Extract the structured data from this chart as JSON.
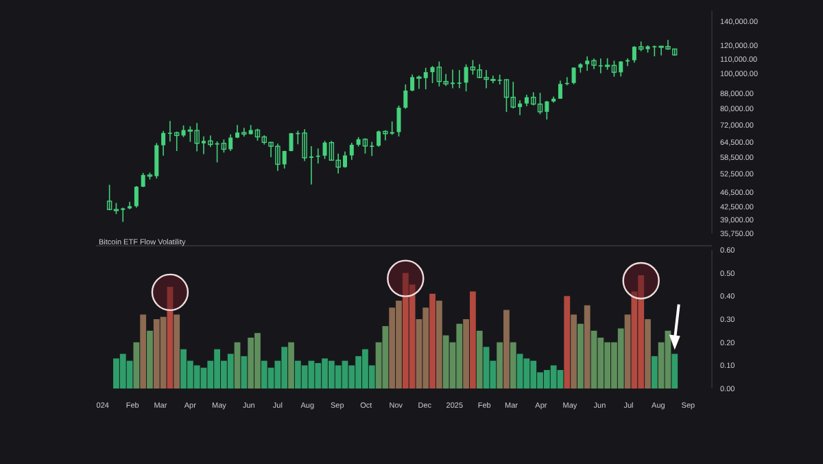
{
  "chart_data": [
    {
      "type": "candlestick",
      "color": "#45d27c",
      "log": "y",
      "tick_labels": "y",
      "xlim": [
        "2023-12-25",
        "2025-09-20"
      ],
      "ylim": [
        35750,
        150000
      ],
      "yticks": [
        {
          "value": 140000,
          "label": "140,000.00"
        },
        {
          "value": 120000,
          "label": "120,000.00"
        },
        {
          "value": 110000,
          "label": "110,000.00"
        },
        {
          "value": 100000,
          "label": "100,000.00"
        },
        {
          "value": 88000,
          "label": "88,000.00"
        },
        {
          "value": 80000,
          "label": "80,000.00"
        },
        {
          "value": 72000,
          "label": "72,000.00"
        },
        {
          "value": 64500,
          "label": "64,500.00"
        },
        {
          "value": 58500,
          "label": "58,500.00"
        },
        {
          "value": 52500,
          "label": "52,500.00"
        },
        {
          "value": 46500,
          "label": "46,500.00"
        },
        {
          "value": 42500,
          "label": "42,500.00"
        },
        {
          "value": 39000,
          "label": "39,000.00"
        },
        {
          "value": 35750,
          "label": "35,750.00"
        }
      ],
      "x": [
        "2024-01-08",
        "2024-01-15",
        "2024-01-22",
        "2024-01-29",
        "2024-02-05",
        "2024-02-12",
        "2024-02-19",
        "2024-02-26",
        "2024-03-04",
        "2024-03-11",
        "2024-03-18",
        "2024-03-25",
        "2024-04-01",
        "2024-04-08",
        "2024-04-15",
        "2024-04-22",
        "2024-04-29",
        "2024-05-06",
        "2024-05-13",
        "2024-05-20",
        "2024-05-27",
        "2024-06-03",
        "2024-06-10",
        "2024-06-17",
        "2024-06-24",
        "2024-07-01",
        "2024-07-08",
        "2024-07-15",
        "2024-07-22",
        "2024-07-29",
        "2024-08-05",
        "2024-08-12",
        "2024-08-19",
        "2024-08-26",
        "2024-09-02",
        "2024-09-09",
        "2024-09-16",
        "2024-09-23",
        "2024-09-30",
        "2024-10-07",
        "2024-10-14",
        "2024-10-21",
        "2024-10-28",
        "2024-11-04",
        "2024-11-11",
        "2024-11-18",
        "2024-11-25",
        "2024-12-02",
        "2024-12-09",
        "2024-12-16",
        "2024-12-23",
        "2024-12-30",
        "2025-01-06",
        "2025-01-13",
        "2025-01-20",
        "2025-01-27",
        "2025-02-03",
        "2025-02-10",
        "2025-02-17",
        "2025-02-24",
        "2025-03-03",
        "2025-03-10",
        "2025-03-17",
        "2025-03-24",
        "2025-03-31",
        "2025-04-07",
        "2025-04-14",
        "2025-04-21",
        "2025-04-28",
        "2025-05-05",
        "2025-05-12",
        "2025-05-19",
        "2025-05-26",
        "2025-06-02",
        "2025-06-09",
        "2025-06-16",
        "2025-06-23",
        "2025-06-30",
        "2025-07-07",
        "2025-07-14",
        "2025-07-21",
        "2025-07-28",
        "2025-08-04",
        "2025-08-11",
        "2025-08-18"
      ],
      "ohlc": [
        [
          44000,
          48900,
          41500,
          41700
        ],
        [
          41700,
          43500,
          40500,
          41600
        ],
        [
          41600,
          42200,
          38500,
          42000
        ],
        [
          42000,
          43800,
          41800,
          42600
        ],
        [
          42600,
          48500,
          42200,
          48300
        ],
        [
          48300,
          52800,
          48200,
          52100
        ],
        [
          52100,
          52900,
          50600,
          51700
        ],
        [
          51700,
          64000,
          50900,
          63100
        ],
        [
          63100,
          69200,
          59000,
          68300
        ],
        [
          68300,
          73800,
          64600,
          68400
        ],
        [
          68400,
          68900,
          60800,
          67200
        ],
        [
          67200,
          71700,
          66500,
          69600
        ],
        [
          69600,
          71300,
          64500,
          69400
        ],
        [
          69400,
          72800,
          60700,
          63900
        ],
        [
          63900,
          66800,
          59600,
          64900
        ],
        [
          64900,
          67200,
          62400,
          63400
        ],
        [
          63400,
          64700,
          56500,
          63900
        ],
        [
          63900,
          65500,
          60200,
          61500
        ],
        [
          61500,
          67700,
          60800,
          66300
        ],
        [
          66300,
          71900,
          66100,
          68500
        ],
        [
          68500,
          70600,
          66700,
          67800
        ],
        [
          67800,
          71900,
          67600,
          69600
        ],
        [
          69600,
          70200,
          65000,
          66600
        ],
        [
          66600,
          67300,
          63400,
          64300
        ],
        [
          64300,
          64500,
          58400,
          62700
        ],
        [
          62700,
          63800,
          53500,
          55800
        ],
        [
          55800,
          60900,
          54300,
          60800
        ],
        [
          60800,
          68300,
          60700,
          68200
        ],
        [
          68200,
          69300,
          63500,
          68300
        ],
        [
          68300,
          70000,
          57000,
          58200
        ],
        [
          58200,
          62700,
          49000,
          58700
        ],
        [
          58700,
          61800,
          56100,
          59000
        ],
        [
          59000,
          64900,
          57800,
          64200
        ],
        [
          64200,
          64900,
          57200,
          57300
        ],
        [
          57300,
          59800,
          52600,
          54800
        ],
        [
          54800,
          60600,
          54600,
          59100
        ],
        [
          59100,
          64100,
          57500,
          63300
        ],
        [
          63300,
          66500,
          62600,
          65600
        ],
        [
          65600,
          66000,
          59800,
          62800
        ],
        [
          62800,
          64500,
          58900,
          62900
        ],
        [
          62900,
          69400,
          62500,
          69000
        ],
        [
          69000,
          69500,
          65100,
          68000
        ],
        [
          68000,
          73600,
          67500,
          68700
        ],
        [
          68700,
          81500,
          66800,
          80400
        ],
        [
          80400,
          93400,
          79800,
          89800
        ],
        [
          89800,
          99600,
          89400,
          97900
        ],
        [
          97900,
          98900,
          90800,
          97300
        ],
        [
          97300,
          104000,
          90500,
          101100
        ],
        [
          101100,
          105200,
          94200,
          104400
        ],
        [
          104400,
          108300,
          92200,
          95200
        ],
        [
          95200,
          99900,
          92500,
          93700
        ],
        [
          93700,
          102700,
          91200,
          94500
        ],
        [
          94500,
          102500,
          91200,
          94500
        ],
        [
          94500,
          106300,
          89300,
          104500
        ],
        [
          104500,
          109300,
          99500,
          102600
        ],
        [
          102600,
          106400,
          97300,
          97700
        ],
        [
          97700,
          102500,
          91200,
          96500
        ],
        [
          96500,
          98800,
          94100,
          96100
        ],
        [
          96100,
          99500,
          93400,
          96300
        ],
        [
          96300,
          96500,
          78200,
          86000
        ],
        [
          86000,
          95000,
          80000,
          80700
        ],
        [
          80700,
          84400,
          76600,
          82600
        ],
        [
          82600,
          87400,
          81200,
          86000
        ],
        [
          86000,
          88800,
          81600,
          82300
        ],
        [
          82300,
          88500,
          77100,
          78300
        ],
        [
          78300,
          84000,
          74500,
          83700
        ],
        [
          83700,
          86400,
          83100,
          85200
        ],
        [
          85200,
          95700,
          85100,
          93700
        ],
        [
          93700,
          97900,
          92900,
          94300
        ],
        [
          94300,
          104200,
          93500,
          104100
        ],
        [
          104100,
          107100,
          100800,
          106400
        ],
        [
          106400,
          111900,
          102000,
          108900
        ],
        [
          108900,
          110400,
          103100,
          105700
        ],
        [
          105700,
          110400,
          100400,
          105700
        ],
        [
          105700,
          110600,
          102700,
          105600
        ],
        [
          105600,
          108900,
          98200,
          101000
        ],
        [
          101000,
          108500,
          98300,
          108300
        ],
        [
          108300,
          110500,
          105100,
          109200
        ],
        [
          109200,
          119500,
          107500,
          119100
        ],
        [
          119100,
          123200,
          115700,
          117300
        ],
        [
          117300,
          120200,
          114700,
          119400
        ],
        [
          119400,
          120000,
          112000,
          119500
        ],
        [
          119500,
          119600,
          112600,
          119300
        ],
        [
          119300,
          124400,
          116800,
          117400
        ],
        [
          117400,
          117600,
          112400,
          113000
        ]
      ]
    },
    {
      "type": "bar",
      "title": "Bitcoin ETF Flow Volatility",
      "xlim": [
        "2023-12-25",
        "2025-09-20"
      ],
      "xticks": [
        {
          "value": "2024-01-01",
          "label": "024"
        },
        {
          "value": "2024-02-01",
          "label": "Feb"
        },
        {
          "value": "2024-03-01",
          "label": "Mar"
        },
        {
          "value": "2024-04-01",
          "label": "Apr"
        },
        {
          "value": "2024-05-01",
          "label": "May"
        },
        {
          "value": "2024-06-01",
          "label": "Jun"
        },
        {
          "value": "2024-07-01",
          "label": "Jul"
        },
        {
          "value": "2024-08-01",
          "label": "Aug"
        },
        {
          "value": "2024-09-01",
          "label": "Sep"
        },
        {
          "value": "2024-10-01",
          "label": "Oct"
        },
        {
          "value": "2024-11-01",
          "label": "Nov"
        },
        {
          "value": "2024-12-01",
          "label": "Dec"
        },
        {
          "value": "2025-01-01",
          "label": "2025"
        },
        {
          "value": "2025-02-01",
          "label": "Feb"
        },
        {
          "value": "2025-03-01",
          "label": "Mar"
        },
        {
          "value": "2025-04-01",
          "label": "Apr"
        },
        {
          "value": "2025-05-01",
          "label": "May"
        },
        {
          "value": "2025-06-01",
          "label": "Jun"
        },
        {
          "value": "2025-07-01",
          "label": "Jul"
        },
        {
          "value": "2025-08-01",
          "label": "Aug"
        },
        {
          "value": "2025-09-01",
          "label": "Sep"
        }
      ],
      "ylim": [
        0,
        0.6
      ],
      "yticks": [
        {
          "value": 0,
          "label": "0.00"
        },
        {
          "value": 0.1,
          "label": "0.10"
        },
        {
          "value": 0.2,
          "label": "0.20"
        },
        {
          "value": 0.3,
          "label": "0.30"
        },
        {
          "value": 0.4,
          "label": "0.40"
        },
        {
          "value": 0.5,
          "label": "0.50"
        },
        {
          "value": 0.6,
          "label": "0.60"
        }
      ],
      "x": [
        "2024-01-15",
        "2024-01-22",
        "2024-01-29",
        "2024-02-05",
        "2024-02-12",
        "2024-02-19",
        "2024-02-26",
        "2024-03-04",
        "2024-03-11",
        "2024-03-18",
        "2024-03-25",
        "2024-04-01",
        "2024-04-08",
        "2024-04-15",
        "2024-04-22",
        "2024-04-29",
        "2024-05-06",
        "2024-05-13",
        "2024-05-20",
        "2024-05-27",
        "2024-06-03",
        "2024-06-10",
        "2024-06-17",
        "2024-06-24",
        "2024-07-01",
        "2024-07-08",
        "2024-07-15",
        "2024-07-22",
        "2024-07-29",
        "2024-08-05",
        "2024-08-12",
        "2024-08-19",
        "2024-08-26",
        "2024-09-02",
        "2024-09-09",
        "2024-09-16",
        "2024-09-23",
        "2024-09-30",
        "2024-10-07",
        "2024-10-14",
        "2024-10-21",
        "2024-10-28",
        "2024-11-04",
        "2024-11-11",
        "2024-11-18",
        "2024-11-25",
        "2024-12-02",
        "2024-12-09",
        "2024-12-16",
        "2024-12-23",
        "2024-12-30",
        "2025-01-06",
        "2025-01-13",
        "2025-01-20",
        "2025-01-27",
        "2025-02-03",
        "2025-02-10",
        "2025-02-17",
        "2025-02-24",
        "2025-03-03",
        "2025-03-10",
        "2025-03-17",
        "2025-03-24",
        "2025-03-31",
        "2025-04-07",
        "2025-04-14",
        "2025-04-21",
        "2025-04-28",
        "2025-05-05",
        "2025-05-12",
        "2025-05-19",
        "2025-05-26",
        "2025-06-02",
        "2025-06-09",
        "2025-06-16",
        "2025-06-23",
        "2025-06-30",
        "2025-07-07",
        "2025-07-14",
        "2025-07-21",
        "2025-07-28",
        "2025-08-04",
        "2025-08-11",
        "2025-08-18"
      ],
      "values": [
        0.13,
        0.15,
        0.12,
        0.2,
        0.32,
        0.25,
        0.3,
        0.31,
        0.44,
        0.32,
        0.17,
        0.12,
        0.1,
        0.09,
        0.12,
        0.17,
        0.12,
        0.15,
        0.2,
        0.14,
        0.22,
        0.24,
        0.12,
        0.09,
        0.12,
        0.18,
        0.2,
        0.12,
        0.1,
        0.12,
        0.11,
        0.13,
        0.12,
        0.1,
        0.12,
        0.1,
        0.14,
        0.17,
        0.1,
        0.2,
        0.27,
        0.35,
        0.38,
        0.5,
        0.45,
        0.3,
        0.35,
        0.41,
        0.38,
        0.23,
        0.2,
        0.28,
        0.3,
        0.42,
        0.25,
        0.18,
        0.12,
        0.2,
        0.34,
        0.2,
        0.15,
        0.13,
        0.12,
        0.07,
        0.08,
        0.1,
        0.08,
        0.4,
        0.32,
        0.28,
        0.36,
        0.25,
        0.22,
        0.2,
        0.2,
        0.26,
        0.32,
        0.42,
        0.49,
        0.3,
        0.14,
        0.2,
        0.25,
        0.15
      ],
      "colors": [
        "#2f9e6a",
        "#2f9e6a",
        "#2f9e6a",
        "#5f8f5c",
        "#8c6b52",
        "#5f8f5c",
        "#8c6b52",
        "#8c6b52",
        "#b3493f",
        "#8c6b52",
        "#2f9e6a",
        "#2f9e6a",
        "#2f9e6a",
        "#2f9e6a",
        "#2f9e6a",
        "#2f9e6a",
        "#2f9e6a",
        "#2f9e6a",
        "#5f8f5c",
        "#2f9e6a",
        "#5f8f5c",
        "#5f8f5c",
        "#2f9e6a",
        "#2f9e6a",
        "#2f9e6a",
        "#2f9e6a",
        "#5f8f5c",
        "#2f9e6a",
        "#2f9e6a",
        "#2f9e6a",
        "#2f9e6a",
        "#2f9e6a",
        "#2f9e6a",
        "#2f9e6a",
        "#2f9e6a",
        "#2f9e6a",
        "#2f9e6a",
        "#2f9e6a",
        "#2f9e6a",
        "#5f8f5c",
        "#5f8f5c",
        "#8c6b52",
        "#8c6b52",
        "#b3493f",
        "#b3493f",
        "#8c6b52",
        "#8c6b52",
        "#b3493f",
        "#8c6b52",
        "#5f8f5c",
        "#5f8f5c",
        "#5f8f5c",
        "#8c6b52",
        "#b3493f",
        "#5f8f5c",
        "#2f9e6a",
        "#2f9e6a",
        "#5f8f5c",
        "#8c6b52",
        "#5f8f5c",
        "#2f9e6a",
        "#2f9e6a",
        "#2f9e6a",
        "#2f9e6a",
        "#2f9e6a",
        "#2f9e6a",
        "#2f9e6a",
        "#b3493f",
        "#8c6b52",
        "#5f8f5c",
        "#8c6b52",
        "#5f8f5c",
        "#5f8f5c",
        "#5f8f5c",
        "#5f8f5c",
        "#5f8f5c",
        "#8c6b52",
        "#b3493f",
        "#b3493f",
        "#8c6b52",
        "#2f9e6a",
        "#5f8f5c",
        "#5f8f5c",
        "#2f9e6a"
      ]
    }
  ]
}
